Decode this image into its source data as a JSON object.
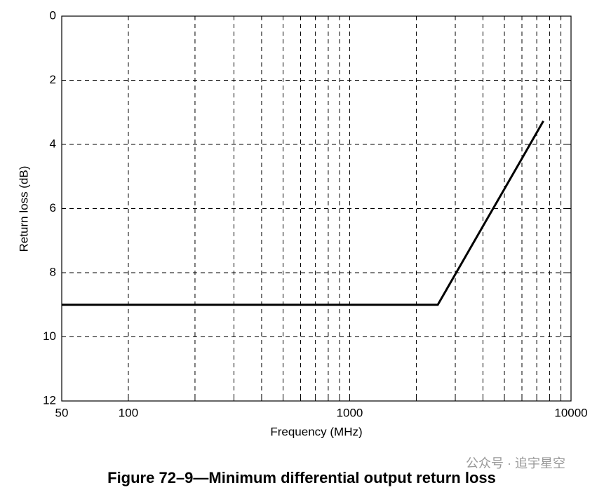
{
  "chart_data": {
    "type": "line",
    "title": "Figure 72–9—Minimum differential output return loss",
    "xlabel": "Frequency (MHz)",
    "ylabel": "Return loss (dB)",
    "x": [
      50,
      2500,
      3000,
      4000,
      5000,
      6000,
      7000,
      7500
    ],
    "values": [
      9,
      9,
      8.05,
      6.55,
      5.39,
      4.44,
      3.63,
      3.27
    ],
    "color": "#000000",
    "xscale": "log",
    "xlim": [
      50,
      10000
    ],
    "xticks": [
      50,
      100,
      1000,
      10000
    ],
    "xminor": [
      200,
      300,
      400,
      500,
      600,
      700,
      800,
      900,
      2000,
      3000,
      4000,
      5000,
      6000,
      7000,
      8000,
      9000
    ],
    "ylim": [
      0,
      12
    ],
    "yticks": [
      0,
      2,
      4,
      6,
      8,
      10,
      12
    ],
    "y_inverted": true,
    "grid": true,
    "watermark": "公众号 · 追宇星空"
  }
}
